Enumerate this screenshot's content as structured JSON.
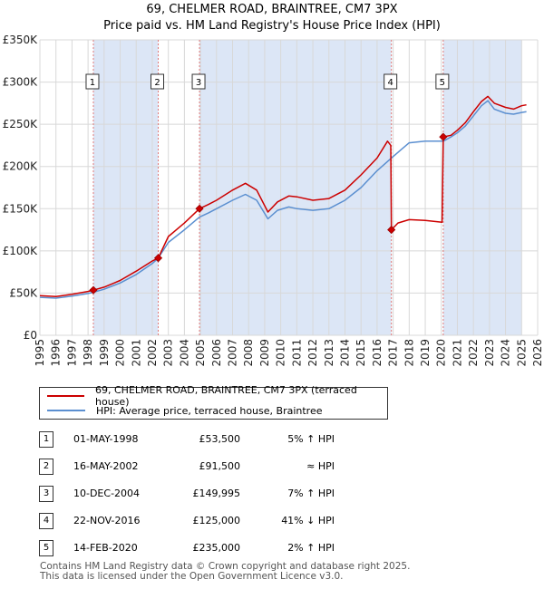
{
  "title_line1": "69, CHELMER ROAD, BRAINTREE, CM7 3PX",
  "title_line2": "Price paid vs. HM Land Registry's House Price Index (HPI)",
  "colors": {
    "price": "#cc0000",
    "hpi": "#5b8fd0",
    "shade": "#dce6f6",
    "grid": "#d8d8d8",
    "marker_line": "#e07a7a"
  },
  "legend": {
    "price_label": "69, CHELMER ROAD, BRAINTREE, CM7 3PX (terraced house)",
    "hpi_label": "HPI: Average price, terraced house, Braintree"
  },
  "sales": [
    {
      "num": "1",
      "date": "01-MAY-1998",
      "price": "£53,500",
      "hpi": "5% ↑ HPI"
    },
    {
      "num": "2",
      "date": "16-MAY-2002",
      "price": "£91,500",
      "hpi": "≈ HPI"
    },
    {
      "num": "3",
      "date": "10-DEC-2004",
      "price": "£149,995",
      "hpi": "7% ↑ HPI"
    },
    {
      "num": "4",
      "date": "22-NOV-2016",
      "price": "£125,000",
      "hpi": "41% ↓ HPI"
    },
    {
      "num": "5",
      "date": "14-FEB-2020",
      "price": "£235,000",
      "hpi": "2% ↑ HPI"
    }
  ],
  "footer_line1": "Contains HM Land Registry data © Crown copyright and database right 2025.",
  "footer_line2": "This data is licensed under the Open Government Licence v3.0.",
  "chart_data": {
    "type": "line",
    "title": "69, CHELMER ROAD, BRAINTREE, CM7 3PX — Price paid vs. HM Land Registry's House Price Index (HPI)",
    "xlim": [
      1995,
      2026
    ],
    "ylim": [
      0,
      350000
    ],
    "x_ticks": [
      "1995",
      "1996",
      "1997",
      "1998",
      "1999",
      "2000",
      "2001",
      "2002",
      "2003",
      "2004",
      "2005",
      "2006",
      "2007",
      "2008",
      "2009",
      "2010",
      "2011",
      "2012",
      "2013",
      "2014",
      "2015",
      "2016",
      "2017",
      "2018",
      "2019",
      "2020",
      "2021",
      "2022",
      "2023",
      "2024",
      "2025",
      "2026"
    ],
    "y_ticks": [
      {
        "value": 0,
        "label": "£0"
      },
      {
        "value": 50000,
        "label": "£50K"
      },
      {
        "value": 100000,
        "label": "£100K"
      },
      {
        "value": 150000,
        "label": "£150K"
      },
      {
        "value": 200000,
        "label": "£200K"
      },
      {
        "value": 250000,
        "label": "£250K"
      },
      {
        "value": 300000,
        "label": "£300K"
      },
      {
        "value": 350000,
        "label": "£350K"
      }
    ],
    "shaded_ranges": [
      [
        1998.33,
        2002.37
      ],
      [
        2004.94,
        2016.89
      ],
      [
        2020.12,
        2025.0
      ]
    ],
    "series": [
      {
        "name": "HPI: Average price, terraced house, Braintree",
        "points": [
          [
            1995.0,
            45000
          ],
          [
            1996.0,
            44000
          ],
          [
            1997.0,
            46500
          ],
          [
            1998.0,
            49500
          ],
          [
            1998.33,
            51000
          ],
          [
            1999.0,
            54500
          ],
          [
            2000.0,
            62000
          ],
          [
            2001.0,
            72000
          ],
          [
            2002.0,
            85000
          ],
          [
            2002.37,
            91500
          ],
          [
            2003.0,
            110000
          ],
          [
            2004.0,
            125000
          ],
          [
            2004.94,
            140000
          ],
          [
            2005.5,
            145000
          ],
          [
            2006.0,
            150000
          ],
          [
            2007.0,
            160000
          ],
          [
            2007.8,
            167000
          ],
          [
            2008.5,
            160000
          ],
          [
            2009.2,
            138000
          ],
          [
            2009.8,
            148000
          ],
          [
            2010.5,
            152000
          ],
          [
            2011.0,
            150000
          ],
          [
            2012.0,
            148000
          ],
          [
            2013.0,
            150000
          ],
          [
            2014.0,
            160000
          ],
          [
            2015.0,
            175000
          ],
          [
            2016.0,
            195000
          ],
          [
            2016.89,
            210000
          ],
          [
            2017.5,
            220000
          ],
          [
            2018.0,
            228000
          ],
          [
            2019.0,
            230000
          ],
          [
            2020.0,
            230000
          ],
          [
            2020.12,
            230000
          ],
          [
            2020.6,
            235000
          ],
          [
            2021.0,
            240000
          ],
          [
            2021.5,
            248000
          ],
          [
            2022.0,
            260000
          ],
          [
            2022.5,
            272000
          ],
          [
            2022.9,
            278000
          ],
          [
            2023.3,
            268000
          ],
          [
            2024.0,
            263000
          ],
          [
            2024.5,
            262000
          ],
          [
            2025.0,
            264000
          ],
          [
            2025.3,
            265000
          ]
        ]
      },
      {
        "name": "69, CHELMER ROAD, BRAINTREE, CM7 3PX (terraced house)",
        "points": [
          [
            1995.0,
            47000
          ],
          [
            1996.0,
            46000
          ],
          [
            1997.0,
            48500
          ],
          [
            1998.0,
            52000
          ],
          [
            1998.33,
            53500
          ],
          [
            1999.0,
            57000
          ],
          [
            2000.0,
            65000
          ],
          [
            2001.0,
            76000
          ],
          [
            2002.0,
            88000
          ],
          [
            2002.37,
            91500
          ],
          [
            2003.0,
            117000
          ],
          [
            2004.0,
            133000
          ],
          [
            2004.94,
            149995
          ],
          [
            2005.5,
            155000
          ],
          [
            2006.0,
            160000
          ],
          [
            2007.0,
            172000
          ],
          [
            2007.8,
            180000
          ],
          [
            2008.5,
            172000
          ],
          [
            2009.2,
            146000
          ],
          [
            2009.8,
            158000
          ],
          [
            2010.5,
            165000
          ],
          [
            2011.0,
            164000
          ],
          [
            2012.0,
            160000
          ],
          [
            2013.0,
            162000
          ],
          [
            2014.0,
            172000
          ],
          [
            2015.0,
            190000
          ],
          [
            2016.0,
            210000
          ],
          [
            2016.65,
            230000
          ],
          [
            2016.85,
            225000
          ],
          [
            2016.89,
            125000
          ],
          [
            2017.3,
            133000
          ],
          [
            2018.0,
            137000
          ],
          [
            2019.0,
            136000
          ],
          [
            2020.05,
            134000
          ],
          [
            2020.12,
            235000
          ],
          [
            2020.6,
            237000
          ],
          [
            2021.0,
            243000
          ],
          [
            2021.5,
            252000
          ],
          [
            2022.0,
            265000
          ],
          [
            2022.5,
            277000
          ],
          [
            2022.9,
            283000
          ],
          [
            2023.3,
            275000
          ],
          [
            2024.0,
            270000
          ],
          [
            2024.5,
            268000
          ],
          [
            2025.0,
            272000
          ],
          [
            2025.3,
            273000
          ]
        ]
      }
    ],
    "sale_markers": [
      {
        "label": "1",
        "x": 1998.33,
        "y": 53500
      },
      {
        "label": "2",
        "x": 2002.37,
        "y": 91500
      },
      {
        "label": "3",
        "x": 2004.94,
        "y": 149995
      },
      {
        "label": "4",
        "x": 2016.89,
        "y": 125000
      },
      {
        "label": "5",
        "x": 2020.12,
        "y": 235000
      }
    ]
  }
}
